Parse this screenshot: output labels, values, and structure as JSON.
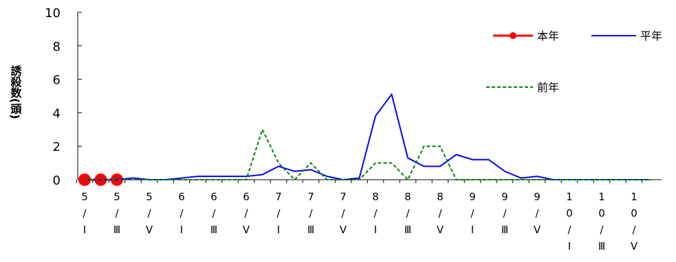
{
  "chart_data": {
    "type": "line",
    "y_label": "誘殺数(頭)",
    "categories": [
      "5/Ⅰ",
      null,
      "5/Ⅲ",
      null,
      "5/Ⅴ",
      null,
      "6/Ⅰ",
      null,
      "6/Ⅲ",
      null,
      "6/Ⅴ",
      null,
      "7/Ⅰ",
      null,
      "7/Ⅲ",
      null,
      "7/Ⅴ",
      null,
      "8/Ⅰ",
      null,
      "8/Ⅲ",
      null,
      "8/Ⅴ",
      null,
      "9/Ⅰ",
      null,
      "9/Ⅲ",
      null,
      "9/Ⅴ",
      null,
      "10/Ⅰ",
      null,
      "10/Ⅲ",
      null,
      "10/Ⅴ",
      null
    ],
    "series": [
      {
        "name": "本年",
        "color": "#ff0000",
        "markers": true,
        "dash": false,
        "values": [
          0,
          0,
          0,
          null,
          null,
          null,
          null,
          null,
          null,
          null,
          null,
          null,
          null,
          null,
          null,
          null,
          null,
          null,
          null,
          null,
          null,
          null,
          null,
          null,
          null,
          null,
          null,
          null,
          null,
          null,
          null,
          null,
          null,
          null,
          null,
          null
        ]
      },
      {
        "name": "平年",
        "color": "#0000ff",
        "markers": false,
        "dash": false,
        "values": [
          0,
          0,
          0,
          0.1,
          0,
          0,
          0.1,
          0.2,
          0.2,
          0.2,
          0.2,
          0.3,
          0.8,
          0.5,
          0.6,
          0.2,
          0,
          0.1,
          3.8,
          5.1,
          1.3,
          0.8,
          0.8,
          1.5,
          1.2,
          1.2,
          0.5,
          0.1,
          0.2,
          0,
          0,
          0,
          0,
          0,
          0,
          0
        ]
      },
      {
        "name": "前年",
        "color": "#008000",
        "markers": false,
        "dash": true,
        "values": [
          0,
          0,
          0,
          0,
          0,
          0,
          0,
          0,
          0,
          0,
          0,
          3,
          1,
          0,
          1,
          0,
          0,
          0,
          1,
          1,
          0,
          2,
          2,
          0,
          0,
          0,
          0,
          0,
          0,
          0,
          0,
          0,
          0,
          0,
          0,
          0
        ]
      }
    ],
    "ylim": [
      0,
      10
    ],
    "yticks": [
      0,
      2,
      4,
      6,
      8,
      10
    ],
    "grid": false
  }
}
